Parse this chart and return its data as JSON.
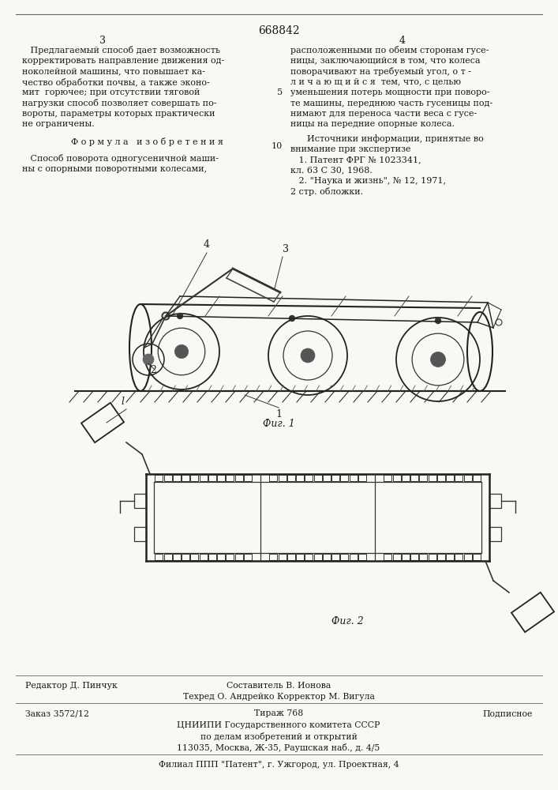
{
  "bg_color": "#f8f8f5",
  "patent_number": "668842",
  "page_left": "3",
  "page_right": "4",
  "left_col_text": [
    "   Предлагаемый способ дает возможность",
    "корректировать направление движения од-",
    "ноколейной машины, что повышает ка-",
    "чество обработки почвы, а также эконо-",
    "мит  горючее; при отсутствии тяговой",
    "нагрузки способ позволяет совершать по-",
    "вороты, параметры которых практически",
    "не ограничены."
  ],
  "formula_header": "Ф о р м у л а   и з о б р е т е н и я",
  "formula_text": [
    "   Способ поворота одногусеничной маши-",
    "ны с опорными поворотными колесами,"
  ],
  "right_col_text": [
    "расположенными по обеим сторонам гусе-",
    "ницы, заключающийся в том, что колеса",
    "поворачивают на требуемый угол, о т -",
    "л и ч а ю щ и й с я  тем, что, с целью",
    "уменьшения потерь мощности при поворо-",
    "те машины, переднюю часть гусеницы под-",
    "нимают для переноса части веса с гусе-",
    "ницы на передние опорные колеса."
  ],
  "sources_header": "      Источники информации, принятые во",
  "sources_text": [
    "внимание при экспертизе",
    "   1. Патент ФРГ № 1023341,",
    "кл. 63 С 30, 1968.",
    "   2. \"Наука и жизнь\", № 12, 1971,",
    "2 стр. обложки."
  ],
  "fig1_label": "Фиг. 1",
  "fig2_label": "Фиг. 2",
  "footer_left": "Редактор Д. Пинчук",
  "footer_center": "Составитель В. Ионова",
  "footer_right_tech": "Техред О. Андрейко Корректор М. Вигула",
  "footer_order": "Заказ 3572/12",
  "footer_tirazh": "Тираж 768",
  "footer_podpisnoe": "Подписное",
  "footer_org1": "ЦНИИПИ Государственного комитета СССР",
  "footer_org2": "по делам изобретений и открытий",
  "footer_addr1": "113035, Москва, Ж-35, Раушская наб., д. 4/5",
  "footer_branch": "Филиал ППП \"Патент\", г. Ужгород, ул. Проектная, 4",
  "text_color": "#1a1a1a",
  "line_color": "#333333"
}
